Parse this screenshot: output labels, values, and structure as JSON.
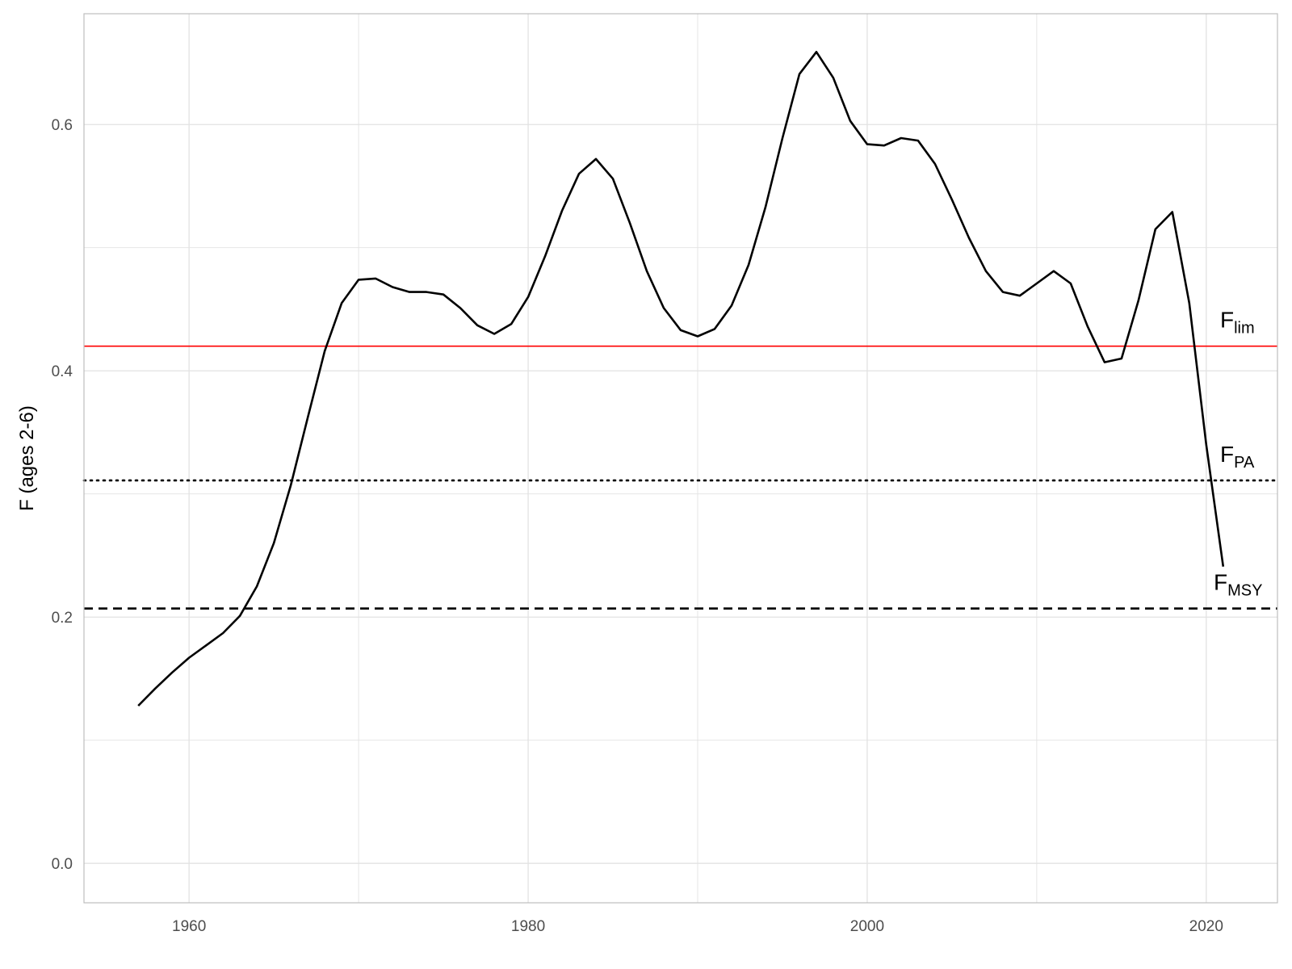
{
  "chart_data": {
    "type": "line",
    "title": "",
    "xlabel": "",
    "ylabel": "F (ages 2-6)",
    "xlim": [
      1953.8,
      2024.2
    ],
    "ylim": [
      -0.032,
      0.69
    ],
    "x_ticks": [
      1960,
      1980,
      2000,
      2020
    ],
    "x_tick_labels": [
      "1960",
      "1980",
      "2000",
      "2020"
    ],
    "x_minor_ticks": [
      1970,
      1990,
      2010
    ],
    "y_ticks": [
      0.0,
      0.2,
      0.4,
      0.6
    ],
    "y_tick_labels": [
      "0.0",
      "0.2",
      "0.4",
      "0.6"
    ],
    "y_minor_ticks": [
      0.1,
      0.3,
      0.5
    ],
    "grid": true,
    "series": [
      {
        "name": "F",
        "color": "#000000",
        "x": [
          1957,
          1958,
          1959,
          1960,
          1961,
          1962,
          1963,
          1964,
          1965,
          1966,
          1967,
          1968,
          1969,
          1970,
          1971,
          1972,
          1973,
          1974,
          1975,
          1976,
          1977,
          1978,
          1979,
          1980,
          1981,
          1982,
          1983,
          1984,
          1985,
          1986,
          1987,
          1988,
          1989,
          1990,
          1991,
          1992,
          1993,
          1994,
          1995,
          1996,
          1997,
          1998,
          1999,
          2000,
          2001,
          2002,
          2003,
          2004,
          2005,
          2006,
          2007,
          2008,
          2009,
          2010,
          2011,
          2012,
          2013,
          2014,
          2015,
          2016,
          2017,
          2018,
          2019,
          2020,
          2021
        ],
        "y": [
          0.128,
          0.142,
          0.155,
          0.167,
          0.177,
          0.187,
          0.201,
          0.225,
          0.26,
          0.307,
          0.362,
          0.416,
          0.455,
          0.474,
          0.475,
          0.468,
          0.464,
          0.464,
          0.462,
          0.451,
          0.437,
          0.43,
          0.438,
          0.46,
          0.493,
          0.53,
          0.56,
          0.572,
          0.556,
          0.52,
          0.481,
          0.451,
          0.433,
          0.428,
          0.434,
          0.453,
          0.486,
          0.533,
          0.589,
          0.641,
          0.659,
          0.638,
          0.603,
          0.584,
          0.583,
          0.589,
          0.587,
          0.568,
          0.539,
          0.508,
          0.481,
          0.464,
          0.461,
          0.471,
          0.481,
          0.471,
          0.436,
          0.407,
          0.41,
          0.457,
          0.515,
          0.529,
          0.455,
          0.34,
          0.241
        ]
      }
    ],
    "reference_lines": [
      {
        "name": "Flim",
        "label_main": "F",
        "label_sub": "lim",
        "y": 0.42,
        "color": "#ff0000",
        "style": "solid"
      },
      {
        "name": "FPA",
        "label_main": "F",
        "label_sub": "PA",
        "y": 0.311,
        "color": "#000000",
        "style": "dotted"
      },
      {
        "name": "FMSY",
        "label_main": "F",
        "label_sub": "MSY",
        "y": 0.207,
        "color": "#000000",
        "style": "dashed"
      }
    ],
    "colors": {
      "grid": "#e2e2e2",
      "panel_border": "#bdbdbd",
      "tick_text": "#4d4d4d"
    }
  }
}
